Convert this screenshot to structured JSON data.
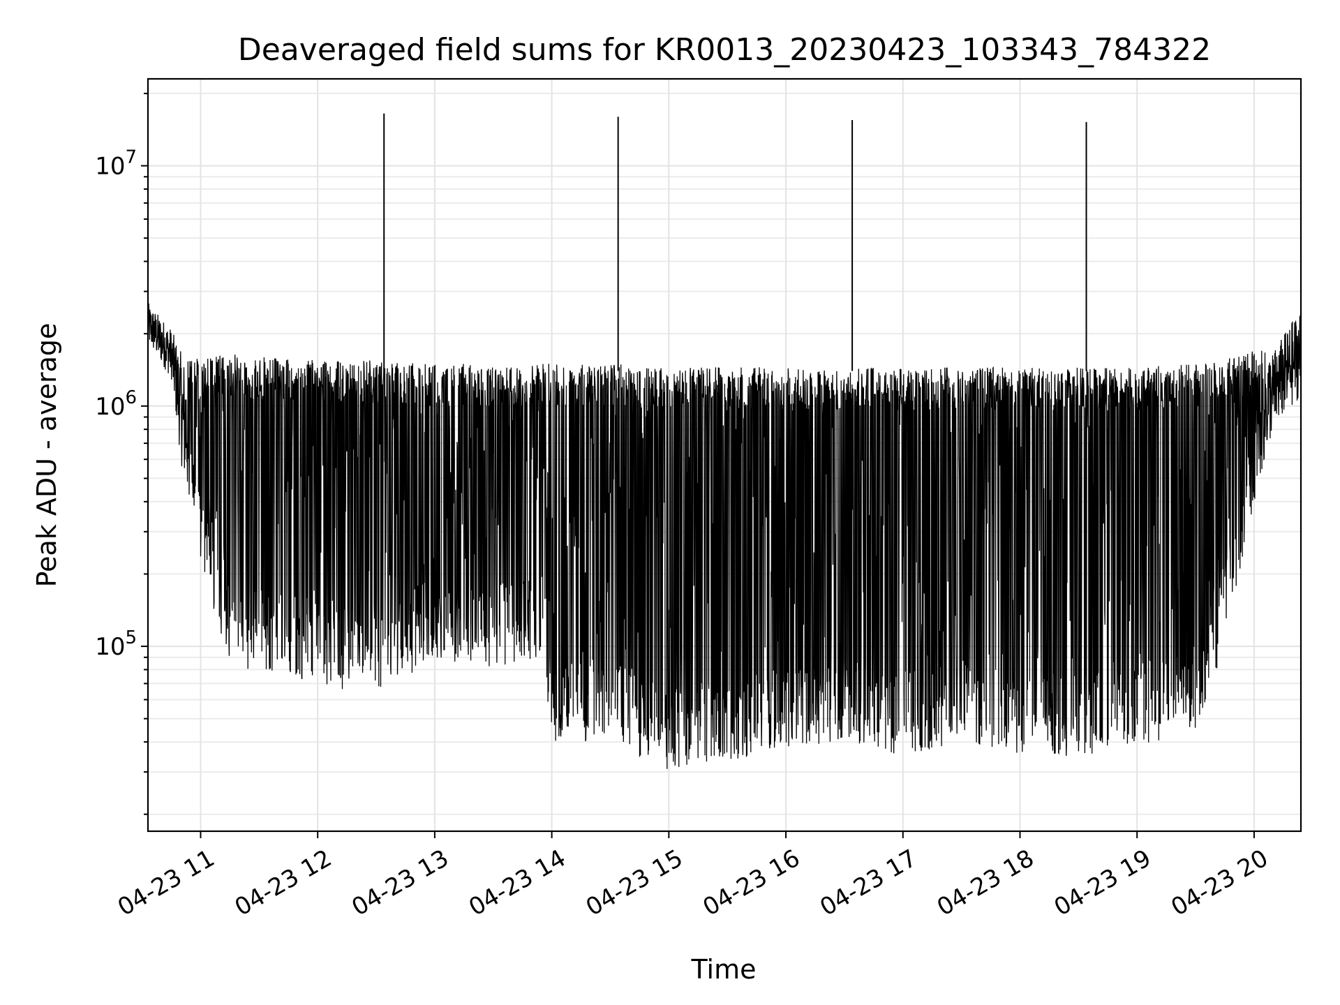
{
  "chart_data": {
    "type": "line",
    "title": "Deaveraged field sums for KR0013_20230423_103343_784322",
    "xlabel": "Time",
    "ylabel": "Peak ADU - average",
    "yscale": "log",
    "ylim": [
      17000,
      23000000
    ],
    "xlim": [
      "2023-04-23 10:33",
      "2023-04-23 20:24"
    ],
    "grid": true,
    "line_color": "#000000",
    "x_ticks": [
      "04-23 11",
      "04-23 12",
      "04-23 13",
      "04-23 14",
      "04-23 15",
      "04-23 16",
      "04-23 17",
      "04-23 18",
      "04-23 19",
      "04-23 20"
    ],
    "y_ticks": [
      {
        "value": 100000,
        "base": "10",
        "exp": "5"
      },
      {
        "value": 1000000,
        "base": "10",
        "exp": "6"
      },
      {
        "value": 10000000,
        "base": "10",
        "exp": "7"
      }
    ],
    "spikes": [
      {
        "x": "2023-04-23 12:34",
        "y": 16500000
      },
      {
        "x": "2023-04-23 14:34",
        "y": 16000000
      },
      {
        "x": "2023-04-23 16:34",
        "y": 15500000
      },
      {
        "x": "2023-04-23 18:34",
        "y": 15200000
      }
    ],
    "envelope": [
      {
        "x": "2023-04-23 10:33",
        "upper": 2700000,
        "lower": 1800000
      },
      {
        "x": "2023-04-23 10:45",
        "upper": 2100000,
        "lower": 1300000
      },
      {
        "x": "2023-04-23 10:51",
        "upper": 1600000,
        "lower": 500000
      },
      {
        "x": "2023-04-23 11:03",
        "upper": 1600000,
        "lower": 180000
      },
      {
        "x": "2023-04-23 11:15",
        "upper": 1650000,
        "lower": 80000
      },
      {
        "x": "2023-04-23 11:30",
        "upper": 1600000,
        "lower": 80000
      },
      {
        "x": "2023-04-23 12:00",
        "upper": 1550000,
        "lower": 70000
      },
      {
        "x": "2023-04-23 12:30",
        "upper": 1550000,
        "lower": 60000
      },
      {
        "x": "2023-04-23 13:00",
        "upper": 1500000,
        "lower": 90000
      },
      {
        "x": "2023-04-23 13:30",
        "upper": 1500000,
        "lower": 80000
      },
      {
        "x": "2023-04-23 13:55",
        "upper": 1500000,
        "lower": 90000
      },
      {
        "x": "2023-04-23 14:00",
        "upper": 1500000,
        "lower": 40000
      },
      {
        "x": "2023-04-23 14:30",
        "upper": 1500000,
        "lower": 40000
      },
      {
        "x": "2023-04-23 15:00",
        "upper": 1450000,
        "lower": 30000
      },
      {
        "x": "2023-04-23 15:30",
        "upper": 1450000,
        "lower": 33000
      },
      {
        "x": "2023-04-23 16:00",
        "upper": 1450000,
        "lower": 38000
      },
      {
        "x": "2023-04-23 16:30",
        "upper": 1450000,
        "lower": 40000
      },
      {
        "x": "2023-04-23 17:00",
        "upper": 1450000,
        "lower": 35000
      },
      {
        "x": "2023-04-23 17:30",
        "upper": 1450000,
        "lower": 40000
      },
      {
        "x": "2023-04-23 18:00",
        "upper": 1450000,
        "lower": 35000
      },
      {
        "x": "2023-04-23 18:30",
        "upper": 1450000,
        "lower": 35000
      },
      {
        "x": "2023-04-23 19:00",
        "upper": 1450000,
        "lower": 38000
      },
      {
        "x": "2023-04-23 19:30",
        "upper": 1500000,
        "lower": 45000
      },
      {
        "x": "2023-04-23 19:45",
        "upper": 1600000,
        "lower": 100000
      },
      {
        "x": "2023-04-23 20:00",
        "upper": 1700000,
        "lower": 400000
      },
      {
        "x": "2023-04-23 20:10",
        "upper": 1700000,
        "lower": 800000
      },
      {
        "x": "2023-04-23 20:24",
        "upper": 2600000,
        "lower": 1100000
      }
    ]
  }
}
